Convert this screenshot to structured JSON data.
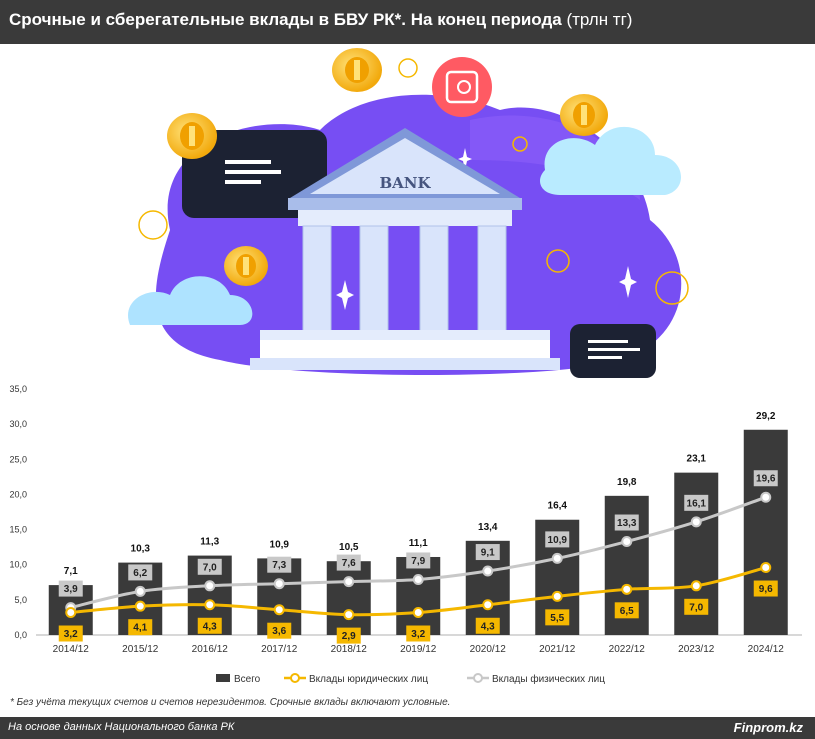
{
  "header": {
    "title_bold": "Срочные и сберегательные вклады в БВУ РК*. На конец периода",
    "title_unit": "(трлн тг)"
  },
  "illustration": {
    "bank_label": "BANK",
    "icons": [
      "bank-icon",
      "safe-icon",
      "coin-icon",
      "cloud-icon",
      "chat-bubble-icon",
      "sparkle-icon"
    ]
  },
  "footnote": "* Без учёта текущих счетов и счетов нерезидентов. Срочные вклады включают условные.",
  "footer": {
    "source": "На основе данных Национального банка РК",
    "brand": "Finprom.kz"
  },
  "colors": {
    "bar": "#3a3a3a",
    "legal": "#f5b800",
    "individual": "#c8c8c8",
    "header_bg": "#3a3a3a",
    "illustration_purple": "#6b3ff2"
  },
  "chart_data": {
    "type": "bar",
    "categories": [
      "2014/12",
      "2015/12",
      "2016/12",
      "2017/12",
      "2018/12",
      "2019/12",
      "2020/12",
      "2021/12",
      "2022/12",
      "2023/12",
      "2024/12"
    ],
    "series": [
      {
        "name": "Всего",
        "kind": "bar",
        "values": [
          7.1,
          10.3,
          11.3,
          10.9,
          10.5,
          11.1,
          13.4,
          16.4,
          19.8,
          23.1,
          29.2
        ]
      },
      {
        "name": "Вклады юридических лиц",
        "kind": "line",
        "values": [
          3.2,
          4.1,
          4.3,
          3.6,
          2.9,
          3.2,
          4.3,
          5.5,
          6.5,
          7.0,
          9.6
        ]
      },
      {
        "name": "Вклады физических лиц",
        "kind": "line",
        "values": [
          3.9,
          6.2,
          7.0,
          7.3,
          7.6,
          7.9,
          9.1,
          10.9,
          13.3,
          16.1,
          19.6
        ]
      }
    ],
    "y_ticks": [
      "0,0",
      "5,0",
      "10,0",
      "15,0",
      "20,0",
      "25,0",
      "30,0",
      "35,0"
    ],
    "ylim": [
      0,
      35
    ],
    "grid": false,
    "legend_position": "bottom"
  }
}
